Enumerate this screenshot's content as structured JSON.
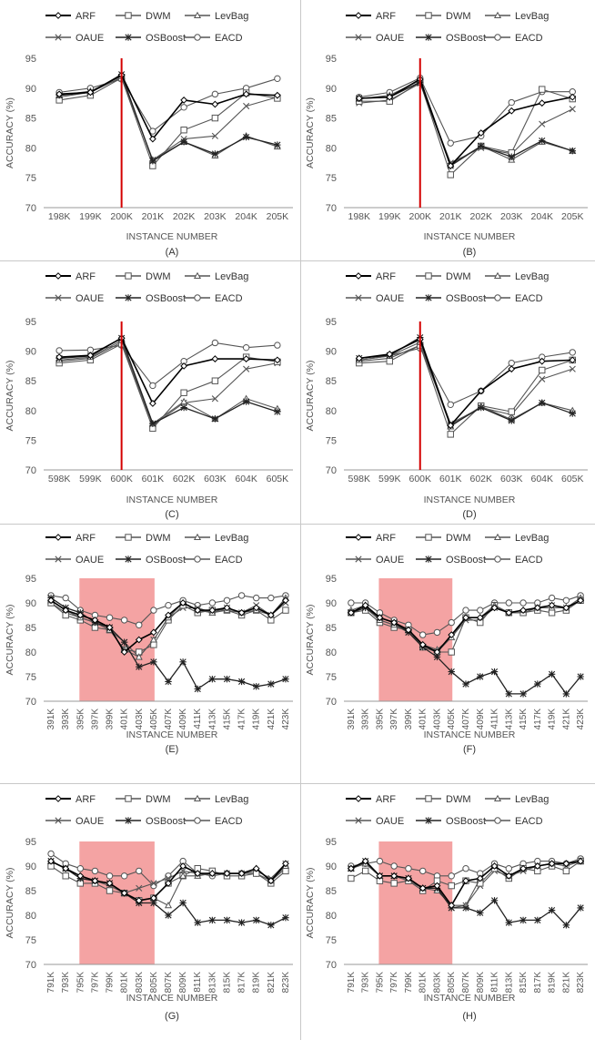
{
  "legend_labels": [
    "ARF",
    "DWM",
    "LevBag",
    "OAUE",
    "OSBoost",
    "EACD"
  ],
  "colors": {
    "arf": "#000000",
    "dwm": "#555555",
    "levbag": "#555555",
    "oaue": "#555555",
    "osboost": "#222222",
    "eacd": "#555555",
    "drift_line": "#d40000",
    "drift_region": "#f4a3a3",
    "axis": "#999999"
  },
  "chart_data": [
    {
      "type": "line",
      "label": "(A)",
      "xlabel": "INSTANCE NUMBER",
      "ylabel": "ACCURACY (%)",
      "ylim": [
        70,
        95
      ],
      "yticks": [
        70,
        75,
        80,
        85,
        90,
        95
      ],
      "categories": [
        "198K",
        "199K",
        "200K",
        "201K",
        "202K",
        "203K",
        "204K",
        "205K"
      ],
      "drift": {
        "kind": "line",
        "at": "200K"
      },
      "series": [
        {
          "name": "ARF",
          "values": [
            89.0,
            89.3,
            92.2,
            81.5,
            88.0,
            87.3,
            89.0,
            88.8
          ]
        },
        {
          "name": "DWM",
          "values": [
            88.0,
            88.8,
            91.7,
            77.0,
            83.0,
            85.0,
            89.2,
            88.3
          ]
        },
        {
          "name": "LevBag",
          "values": [
            88.8,
            89.5,
            92.0,
            78.0,
            81.0,
            78.7,
            82.0,
            80.2
          ]
        },
        {
          "name": "OAUE",
          "values": [
            88.5,
            89.3,
            91.8,
            78.0,
            81.5,
            82.0,
            87.0,
            88.5
          ]
        },
        {
          "name": "OSBoost",
          "values": [
            88.8,
            89.3,
            92.3,
            77.8,
            81.0,
            79.0,
            81.8,
            80.5
          ]
        },
        {
          "name": "EACD",
          "values": [
            89.3,
            90.0,
            91.5,
            82.8,
            86.8,
            89.0,
            90.0,
            91.6
          ]
        }
      ]
    },
    {
      "type": "line",
      "label": "(B)",
      "xlabel": "INSTANCE NUMBER",
      "ylabel": "ACCURACY (%)",
      "ylim": [
        70,
        95
      ],
      "yticks": [
        70,
        75,
        80,
        85,
        90,
        95
      ],
      "categories": [
        "198K",
        "199K",
        "200K",
        "201K",
        "202K",
        "203K",
        "204K",
        "205K"
      ],
      "drift": {
        "kind": "line",
        "at": "200K"
      },
      "series": [
        {
          "name": "ARF",
          "values": [
            88.3,
            88.5,
            91.5,
            77.0,
            82.5,
            86.2,
            87.5,
            88.5
          ]
        },
        {
          "name": "DWM",
          "values": [
            87.8,
            87.8,
            91.0,
            75.5,
            80.3,
            79.2,
            89.8,
            88.2
          ]
        },
        {
          "name": "LevBag",
          "values": [
            88.2,
            88.8,
            91.3,
            77.2,
            80.3,
            78.0,
            81.0,
            79.5
          ]
        },
        {
          "name": "OAUE",
          "values": [
            87.5,
            88.0,
            90.8,
            77.5,
            80.0,
            79.0,
            84.0,
            86.5
          ]
        },
        {
          "name": "OSBoost",
          "values": [
            88.3,
            88.5,
            91.0,
            77.0,
            80.3,
            78.5,
            81.2,
            79.5
          ]
        },
        {
          "name": "EACD",
          "values": [
            88.5,
            89.3,
            91.7,
            80.8,
            82.0,
            87.6,
            89.4,
            89.4
          ]
        }
      ]
    },
    {
      "type": "line",
      "label": "(C)",
      "xlabel": "INSTANCE NUMBER",
      "ylabel": "ACCURACY (%)",
      "ylim": [
        70,
        95
      ],
      "yticks": [
        70,
        75,
        80,
        85,
        90,
        95
      ],
      "categories": [
        "598K",
        "599K",
        "600K",
        "601K",
        "602K",
        "603K",
        "604K",
        "605K"
      ],
      "drift": {
        "kind": "line",
        "at": "600K"
      },
      "series": [
        {
          "name": "ARF",
          "values": [
            89.0,
            89.3,
            92.2,
            81.2,
            87.5,
            88.7,
            88.7,
            88.5
          ]
        },
        {
          "name": "DWM",
          "values": [
            88.0,
            88.5,
            91.2,
            77.0,
            83.0,
            85.0,
            89.0,
            88.2
          ]
        },
        {
          "name": "LevBag",
          "values": [
            88.5,
            89.0,
            91.8,
            77.8,
            81.5,
            78.6,
            82.0,
            80.3
          ]
        },
        {
          "name": "OAUE",
          "values": [
            88.3,
            88.8,
            91.5,
            77.5,
            81.3,
            82.0,
            87.0,
            88.0
          ]
        },
        {
          "name": "OSBoost",
          "values": [
            88.8,
            89.2,
            92.2,
            77.8,
            80.5,
            78.6,
            81.5,
            79.8
          ]
        },
        {
          "name": "EACD",
          "values": [
            90.1,
            90.2,
            91.0,
            84.2,
            88.3,
            91.4,
            90.6,
            91.0
          ]
        }
      ]
    },
    {
      "type": "line",
      "label": "(D)",
      "xlabel": "INSTANCE NUMBER",
      "ylabel": "ACCURACY (%)",
      "ylim": [
        70,
        95
      ],
      "yticks": [
        70,
        75,
        80,
        85,
        90,
        95
      ],
      "categories": [
        "598K",
        "599K",
        "600K",
        "601K",
        "602K",
        "603K",
        "604K",
        "605K"
      ],
      "drift": {
        "kind": "line",
        "at": "600K"
      },
      "series": [
        {
          "name": "ARF",
          "values": [
            88.8,
            89.5,
            92.0,
            77.5,
            83.3,
            87.0,
            88.3,
            88.5
          ]
        },
        {
          "name": "DWM",
          "values": [
            88.0,
            88.3,
            91.0,
            76.0,
            80.8,
            79.8,
            86.8,
            88.5
          ]
        },
        {
          "name": "LevBag",
          "values": [
            88.5,
            89.2,
            91.5,
            77.3,
            80.7,
            78.5,
            81.3,
            80.0
          ]
        },
        {
          "name": "OAUE",
          "values": [
            88.3,
            88.8,
            91.0,
            77.8,
            80.5,
            79.3,
            85.3,
            87.0
          ]
        },
        {
          "name": "OSBoost",
          "values": [
            88.8,
            89.3,
            92.3,
            77.5,
            80.5,
            78.3,
            81.3,
            79.5
          ]
        },
        {
          "name": "EACD",
          "values": [
            88.5,
            89.2,
            90.5,
            81.0,
            83.3,
            88.0,
            89.0,
            89.8
          ]
        }
      ]
    },
    {
      "type": "line",
      "label": "(E)",
      "xlabel": "INSTANCE NUMBER",
      "ylabel": "ACCURACY (%)",
      "ylim": [
        70,
        95
      ],
      "yticks": [
        70,
        75,
        80,
        85,
        90,
        95
      ],
      "categories": [
        "391K",
        "393K",
        "395K",
        "397K",
        "399K",
        "401K",
        "403K",
        "405K",
        "407K",
        "409K",
        "411K",
        "413K",
        "415K",
        "417K",
        "419K",
        "421K",
        "423K"
      ],
      "drift": {
        "kind": "region",
        "from": "395K",
        "to": "405K"
      },
      "series": [
        {
          "name": "ARF",
          "values": [
            90.5,
            88.5,
            87.5,
            86.5,
            85.0,
            80.0,
            82.5,
            84.0,
            87.5,
            90.0,
            88.5,
            88.5,
            89.0,
            88.0,
            89.0,
            87.5,
            90.5
          ]
        },
        {
          "name": "DWM",
          "values": [
            90.0,
            87.5,
            86.5,
            85.0,
            84.5,
            80.5,
            80.0,
            81.5,
            86.5,
            89.5,
            88.0,
            88.5,
            88.5,
            87.5,
            88.5,
            86.5,
            88.5
          ]
        },
        {
          "name": "LevBag",
          "values": [
            90.5,
            88.5,
            87.0,
            86.0,
            84.5,
            80.5,
            79.0,
            82.5,
            87.0,
            90.0,
            88.5,
            88.0,
            88.5,
            88.0,
            88.5,
            87.5,
            91.0
          ]
        },
        {
          "name": "OAUE",
          "values": [
            90.0,
            88.0,
            87.0,
            86.0,
            84.5,
            82.0,
            79.0,
            82.5,
            87.0,
            89.0,
            89.0,
            88.0,
            89.0,
            88.0,
            89.5,
            87.5,
            90.0
          ]
        },
        {
          "name": "OSBoost",
          "values": [
            91.0,
            89.0,
            88.0,
            86.0,
            85.0,
            82.0,
            77.0,
            78.0,
            74.0,
            78.0,
            72.5,
            74.5,
            74.5,
            74.0,
            73.0,
            73.5,
            74.5
          ]
        },
        {
          "name": "EACD",
          "values": [
            91.5,
            91.0,
            88.5,
            87.5,
            87.0,
            86.5,
            85.5,
            88.5,
            89.5,
            90.5,
            89.5,
            90.0,
            90.5,
            91.5,
            91.0,
            91.0,
            91.5
          ]
        }
      ]
    },
    {
      "type": "line",
      "label": "(F)",
      "xlabel": "INSTANCE NUMBER",
      "ylabel": "ACCURACY (%)",
      "ylim": [
        70,
        95
      ],
      "yticks": [
        70,
        75,
        80,
        85,
        90,
        95
      ],
      "categories": [
        "391K",
        "393K",
        "395K",
        "397K",
        "399K",
        "401K",
        "403K",
        "405K",
        "407K",
        "409K",
        "411K",
        "413K",
        "415K",
        "417K",
        "419K",
        "421K",
        "423K"
      ],
      "drift": {
        "kind": "region",
        "from": "395K",
        "to": "405K"
      },
      "series": [
        {
          "name": "ARF",
          "values": [
            88.0,
            89.5,
            87.0,
            86.0,
            84.5,
            81.5,
            80.0,
            83.5,
            87.0,
            87.0,
            89.0,
            88.0,
            88.5,
            89.0,
            89.5,
            89.0,
            90.5
          ]
        },
        {
          "name": "DWM",
          "values": [
            88.0,
            88.5,
            86.0,
            85.0,
            84.5,
            81.0,
            80.0,
            80.0,
            87.0,
            86.0,
            89.5,
            88.0,
            88.0,
            88.5,
            88.0,
            88.5,
            90.5
          ]
        },
        {
          "name": "LevBag",
          "values": [
            88.5,
            89.5,
            86.5,
            85.5,
            84.5,
            81.5,
            80.5,
            83.0,
            87.0,
            87.0,
            89.5,
            88.0,
            88.5,
            89.0,
            89.0,
            89.0,
            91.0
          ]
        },
        {
          "name": "OAUE",
          "values": [
            88.0,
            89.0,
            86.5,
            85.5,
            84.0,
            81.0,
            80.0,
            83.0,
            86.5,
            86.5,
            89.0,
            88.0,
            88.0,
            89.0,
            89.5,
            89.0,
            90.5
          ]
        },
        {
          "name": "OSBoost",
          "values": [
            88.0,
            89.0,
            87.0,
            86.0,
            84.0,
            81.0,
            79.0,
            76.0,
            73.5,
            75.0,
            76.0,
            71.5,
            71.5,
            73.5,
            75.5,
            71.5,
            75.0
          ]
        },
        {
          "name": "EACD",
          "values": [
            90.0,
            90.0,
            88.0,
            86.5,
            85.5,
            83.5,
            84.0,
            86.0,
            88.5,
            88.5,
            90.0,
            90.0,
            90.0,
            90.0,
            91.0,
            90.5,
            91.5
          ]
        }
      ]
    },
    {
      "type": "line",
      "label": "(G)",
      "xlabel": "INSTANCE NUMBER",
      "ylabel": "ACCURACY (%)",
      "ylim": [
        70,
        95
      ],
      "yticks": [
        70,
        75,
        80,
        85,
        90,
        95
      ],
      "categories": [
        "791K",
        "793K",
        "795K",
        "797K",
        "799K",
        "801K",
        "803K",
        "805K",
        "807K",
        "809K",
        "811K",
        "813K",
        "815K",
        "817K",
        "819K",
        "821K",
        "823K"
      ],
      "drift": {
        "kind": "region",
        "from": "795K",
        "to": "805K"
      },
      "series": [
        {
          "name": "ARF",
          "values": [
            91.0,
            89.5,
            88.0,
            87.0,
            86.5,
            84.5,
            83.0,
            83.5,
            86.5,
            90.0,
            88.5,
            88.5,
            88.5,
            88.5,
            89.5,
            87.0,
            90.5
          ]
        },
        {
          "name": "DWM",
          "values": [
            90.0,
            88.0,
            86.5,
            86.5,
            85.0,
            84.5,
            83.0,
            83.5,
            86.5,
            88.0,
            89.5,
            89.0,
            88.0,
            88.0,
            88.5,
            86.5,
            89.0
          ]
        },
        {
          "name": "LevBag",
          "values": [
            91.0,
            89.5,
            87.5,
            87.0,
            86.5,
            84.5,
            83.0,
            83.5,
            82.0,
            88.0,
            88.0,
            88.5,
            88.5,
            88.5,
            89.5,
            87.0,
            90.0
          ]
        },
        {
          "name": "OAUE",
          "values": [
            91.0,
            89.5,
            87.5,
            87.0,
            86.0,
            84.5,
            85.5,
            86.5,
            87.5,
            89.0,
            88.5,
            88.5,
            88.5,
            88.5,
            89.0,
            87.5,
            90.5
          ]
        },
        {
          "name": "OSBoost",
          "values": [
            91.0,
            89.5,
            87.5,
            87.0,
            86.5,
            84.5,
            82.5,
            82.5,
            80.0,
            82.5,
            78.5,
            79.0,
            79.0,
            78.5,
            79.0,
            78.0,
            79.5
          ]
        },
        {
          "name": "EACD",
          "values": [
            92.5,
            90.5,
            89.5,
            89.0,
            88.0,
            88.0,
            89.0,
            86.0,
            88.0,
            91.0,
            88.5,
            88.0,
            88.5,
            88.5,
            88.5,
            87.0,
            89.5
          ]
        }
      ]
    },
    {
      "type": "line",
      "label": "(H)",
      "xlabel": "INSTANCE NUMBER",
      "ylabel": "ACCURACY (%)",
      "ylim": [
        70,
        95
      ],
      "yticks": [
        70,
        75,
        80,
        85,
        90,
        95
      ],
      "categories": [
        "791K",
        "793K",
        "795K",
        "797K",
        "799K",
        "801K",
        "803K",
        "805K",
        "807K",
        "809K",
        "811K",
        "813K",
        "815K",
        "817K",
        "819K",
        "821K",
        "823K"
      ],
      "drift": {
        "kind": "region",
        "from": "795K",
        "to": "805K"
      },
      "series": [
        {
          "name": "ARF",
          "values": [
            89.5,
            91.0,
            88.0,
            88.0,
            87.5,
            85.5,
            86.0,
            82.0,
            87.0,
            87.5,
            90.0,
            88.0,
            89.5,
            90.0,
            90.5,
            90.5,
            91.0
          ]
        },
        {
          "name": "DWM",
          "values": [
            87.5,
            89.0,
            87.0,
            86.5,
            87.0,
            85.0,
            87.0,
            86.0,
            87.0,
            86.5,
            89.5,
            87.5,
            89.5,
            89.0,
            90.0,
            89.0,
            91.0
          ]
        },
        {
          "name": "LevBag",
          "values": [
            89.5,
            90.5,
            88.0,
            88.0,
            87.5,
            85.5,
            85.0,
            82.0,
            82.0,
            87.5,
            90.0,
            88.0,
            89.5,
            90.0,
            90.5,
            90.5,
            91.0
          ]
        },
        {
          "name": "OAUE",
          "values": [
            89.5,
            90.5,
            88.0,
            88.0,
            87.0,
            85.5,
            85.5,
            81.5,
            82.0,
            86.0,
            89.0,
            88.0,
            89.0,
            90.0,
            90.5,
            90.0,
            91.0
          ]
        },
        {
          "name": "OSBoost",
          "values": [
            89.5,
            91.0,
            88.0,
            88.0,
            87.5,
            85.5,
            85.5,
            81.5,
            81.5,
            80.5,
            83.0,
            78.5,
            79.0,
            79.0,
            81.0,
            78.0,
            81.5
          ]
        },
        {
          "name": "EACD",
          "values": [
            90.0,
            90.5,
            91.0,
            90.0,
            89.5,
            89.0,
            88.0,
            88.0,
            89.5,
            88.5,
            90.5,
            89.5,
            90.5,
            91.0,
            91.0,
            90.5,
            91.5
          ]
        }
      ]
    }
  ]
}
